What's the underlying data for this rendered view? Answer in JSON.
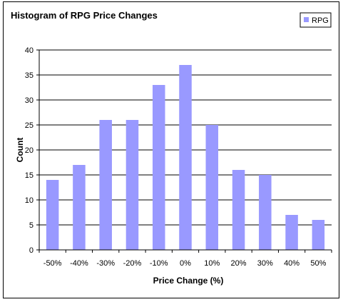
{
  "chart_data": {
    "type": "bar",
    "title": "Histogram of RPG Price Changes",
    "xlabel": "Price Change (%)",
    "ylabel": "Count",
    "categories": [
      "-50%",
      "-40%",
      "-30%",
      "-20%",
      "-10%",
      "0%",
      "10%",
      "20%",
      "30%",
      "40%",
      "50%"
    ],
    "series": [
      {
        "name": "RPG",
        "values": [
          14,
          17,
          26,
          26,
          33,
          37,
          25,
          16,
          15,
          7,
          6
        ],
        "color": "#9999ff"
      }
    ],
    "ylim": [
      0,
      40
    ],
    "yticks": [
      0,
      5,
      10,
      15,
      20,
      25,
      30,
      35,
      40
    ],
    "grid": true,
    "legend_position": "top-right"
  }
}
